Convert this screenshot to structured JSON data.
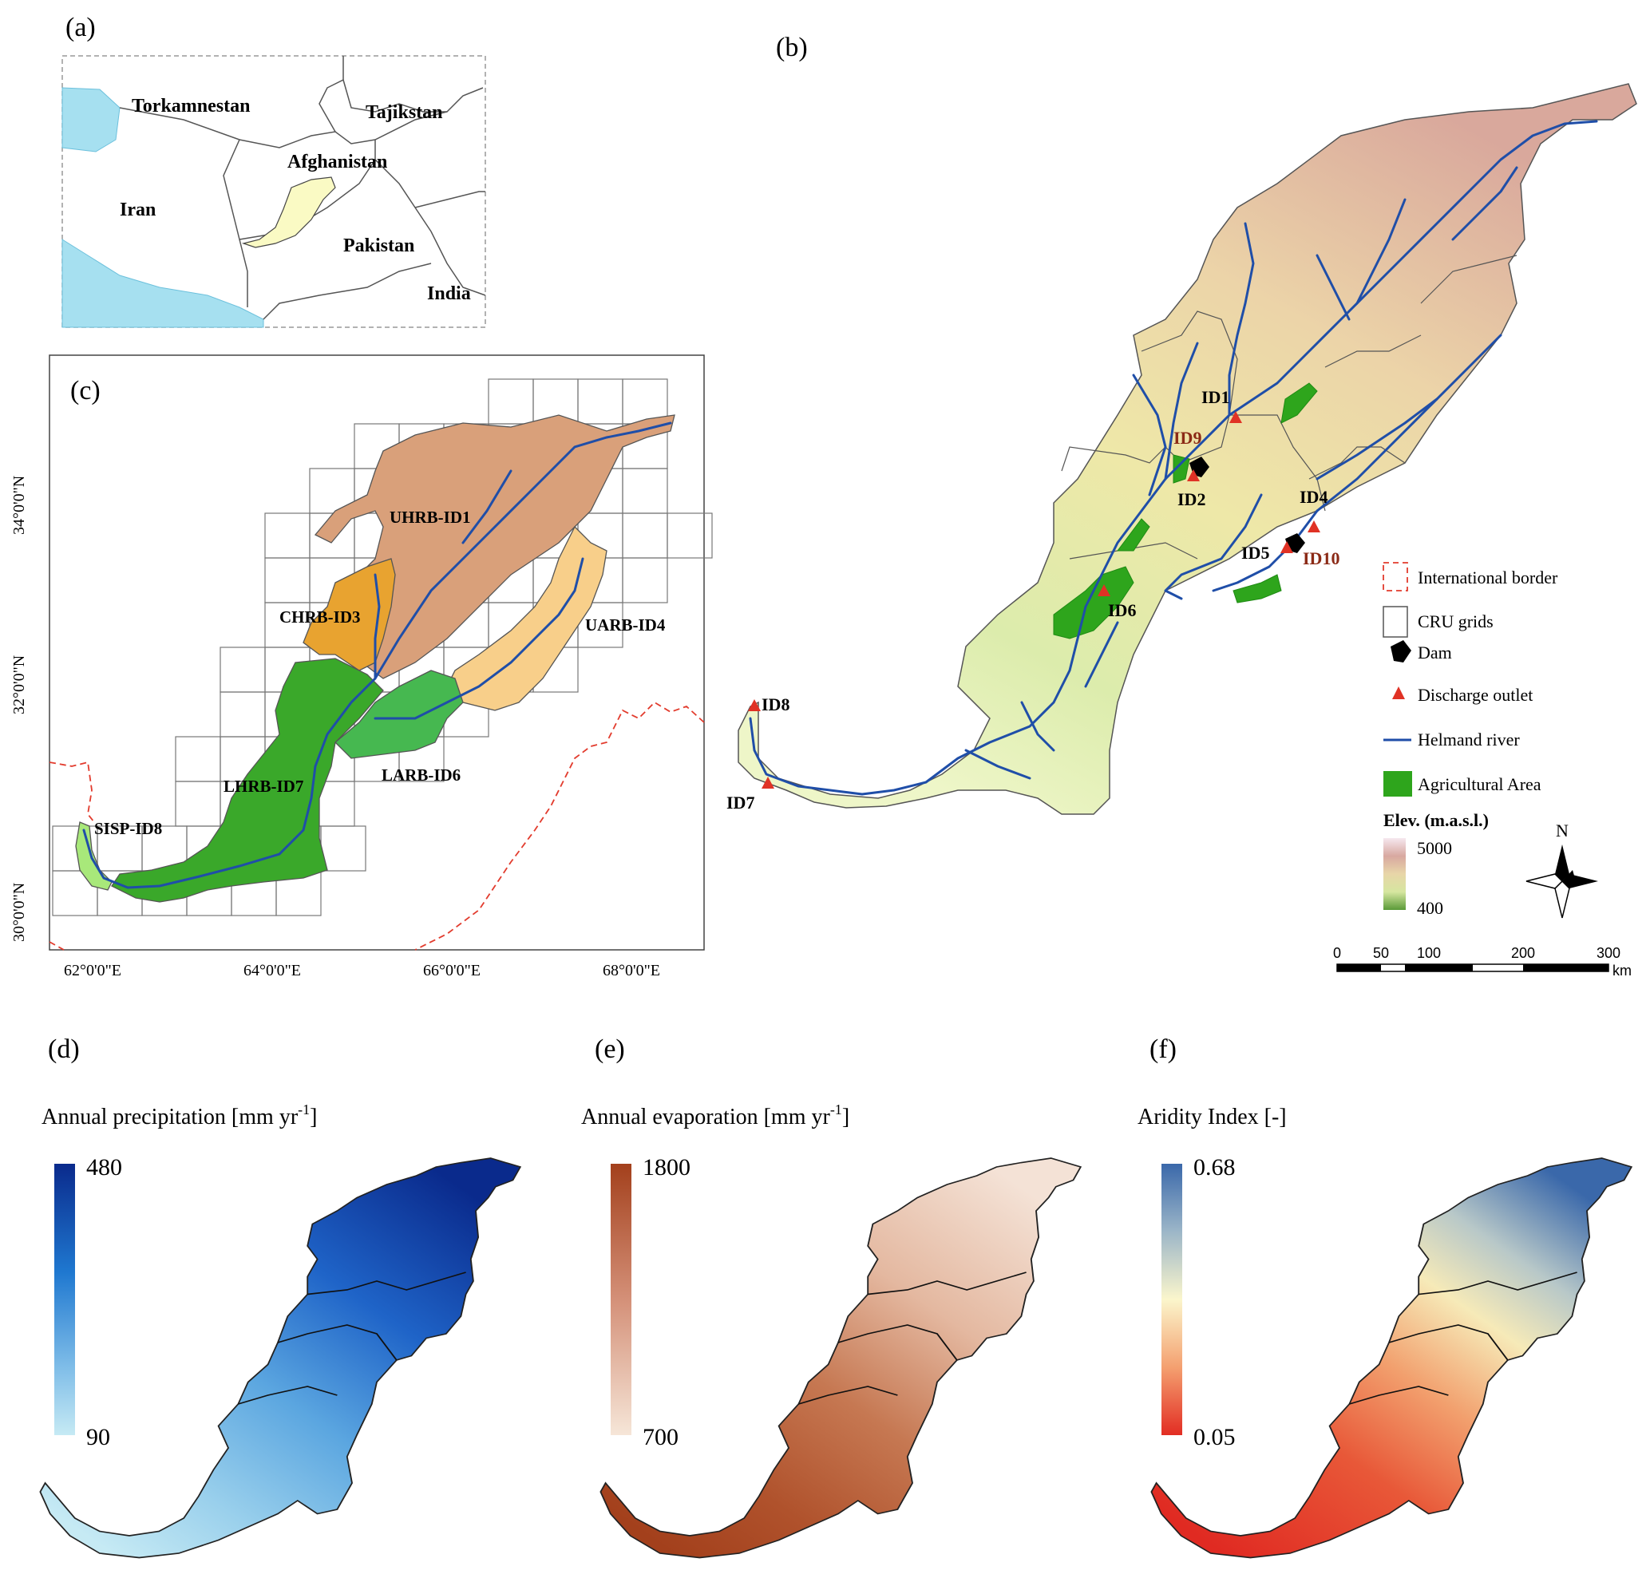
{
  "panels": {
    "a": {
      "label": "(a)"
    },
    "b": {
      "label": "(b)"
    },
    "c": {
      "label": "(c)"
    },
    "d": {
      "label": "(d)"
    },
    "e": {
      "label": "(e)"
    },
    "f": {
      "label": "(f)"
    }
  },
  "countries": {
    "turkmenistan": "Torkamnestan",
    "tajikistan": "Tajikstan",
    "afghanistan": "Afghanistan",
    "iran": "Iran",
    "pakistan": "Pakistan",
    "india": "India"
  },
  "subbasins": {
    "uhrb": "UHRB-ID1",
    "chrb": "CHRB-ID3",
    "uarb": "UARB-ID4",
    "larb": "LARB-ID6",
    "lhrb": "LHRB-ID7",
    "sisp": "SISP-ID8"
  },
  "lat_labels": [
    "34°0'0\"N",
    "32°0'0\"N",
    "30°0'0\"N"
  ],
  "lon_labels": [
    "62°0'0\"E",
    "64°0'0\"E",
    "66°0'0\"E",
    "68°0'0\"E"
  ],
  "stations": {
    "id1": "ID1",
    "id2": "ID2",
    "id4": "ID4",
    "id5": "ID5",
    "id6": "ID6",
    "id7": "ID7",
    "id8": "ID8",
    "id9": "ID9",
    "id10": "ID10"
  },
  "legend": {
    "border": "International border",
    "cru": "CRU grids",
    "dam": "Dam",
    "outlet": "Discharge outlet",
    "river": "Helmand river",
    "agri": "Agricultural Area",
    "elev_title": "Elev. (m.a.s.l.)",
    "elev_max": "5000",
    "elev_min": "400"
  },
  "north_arrow": "N",
  "scale_bar": {
    "ticks": [
      "0",
      "50",
      "100",
      "200",
      "300"
    ],
    "unit": "km"
  },
  "colorbars": {
    "precip": {
      "title": "Annual precipitation [mm yr",
      "sup": "-1",
      "close": "]",
      "max": "480",
      "min": "90"
    },
    "evap": {
      "title": "Annual evaporation [mm yr",
      "sup": "-1",
      "close": "]",
      "max": "1800",
      "min": "700"
    },
    "aridity": {
      "title": "Aridity Index [-]",
      "max": "0.68",
      "min": "0.05"
    }
  },
  "colors": {
    "water": "#a6e0f0",
    "basin_fill": "#fafac4",
    "uhrb": "#d9a07a",
    "chrb": "#e8a330",
    "uarb": "#f8cf8a",
    "larb": "#46b850",
    "lhrb": "#3aa82a",
    "sisp": "#a8e87a",
    "river": "#1f4ea8",
    "agri": "#2ea51c",
    "outlet": "#e03225",
    "border": "#e23b2d"
  }
}
